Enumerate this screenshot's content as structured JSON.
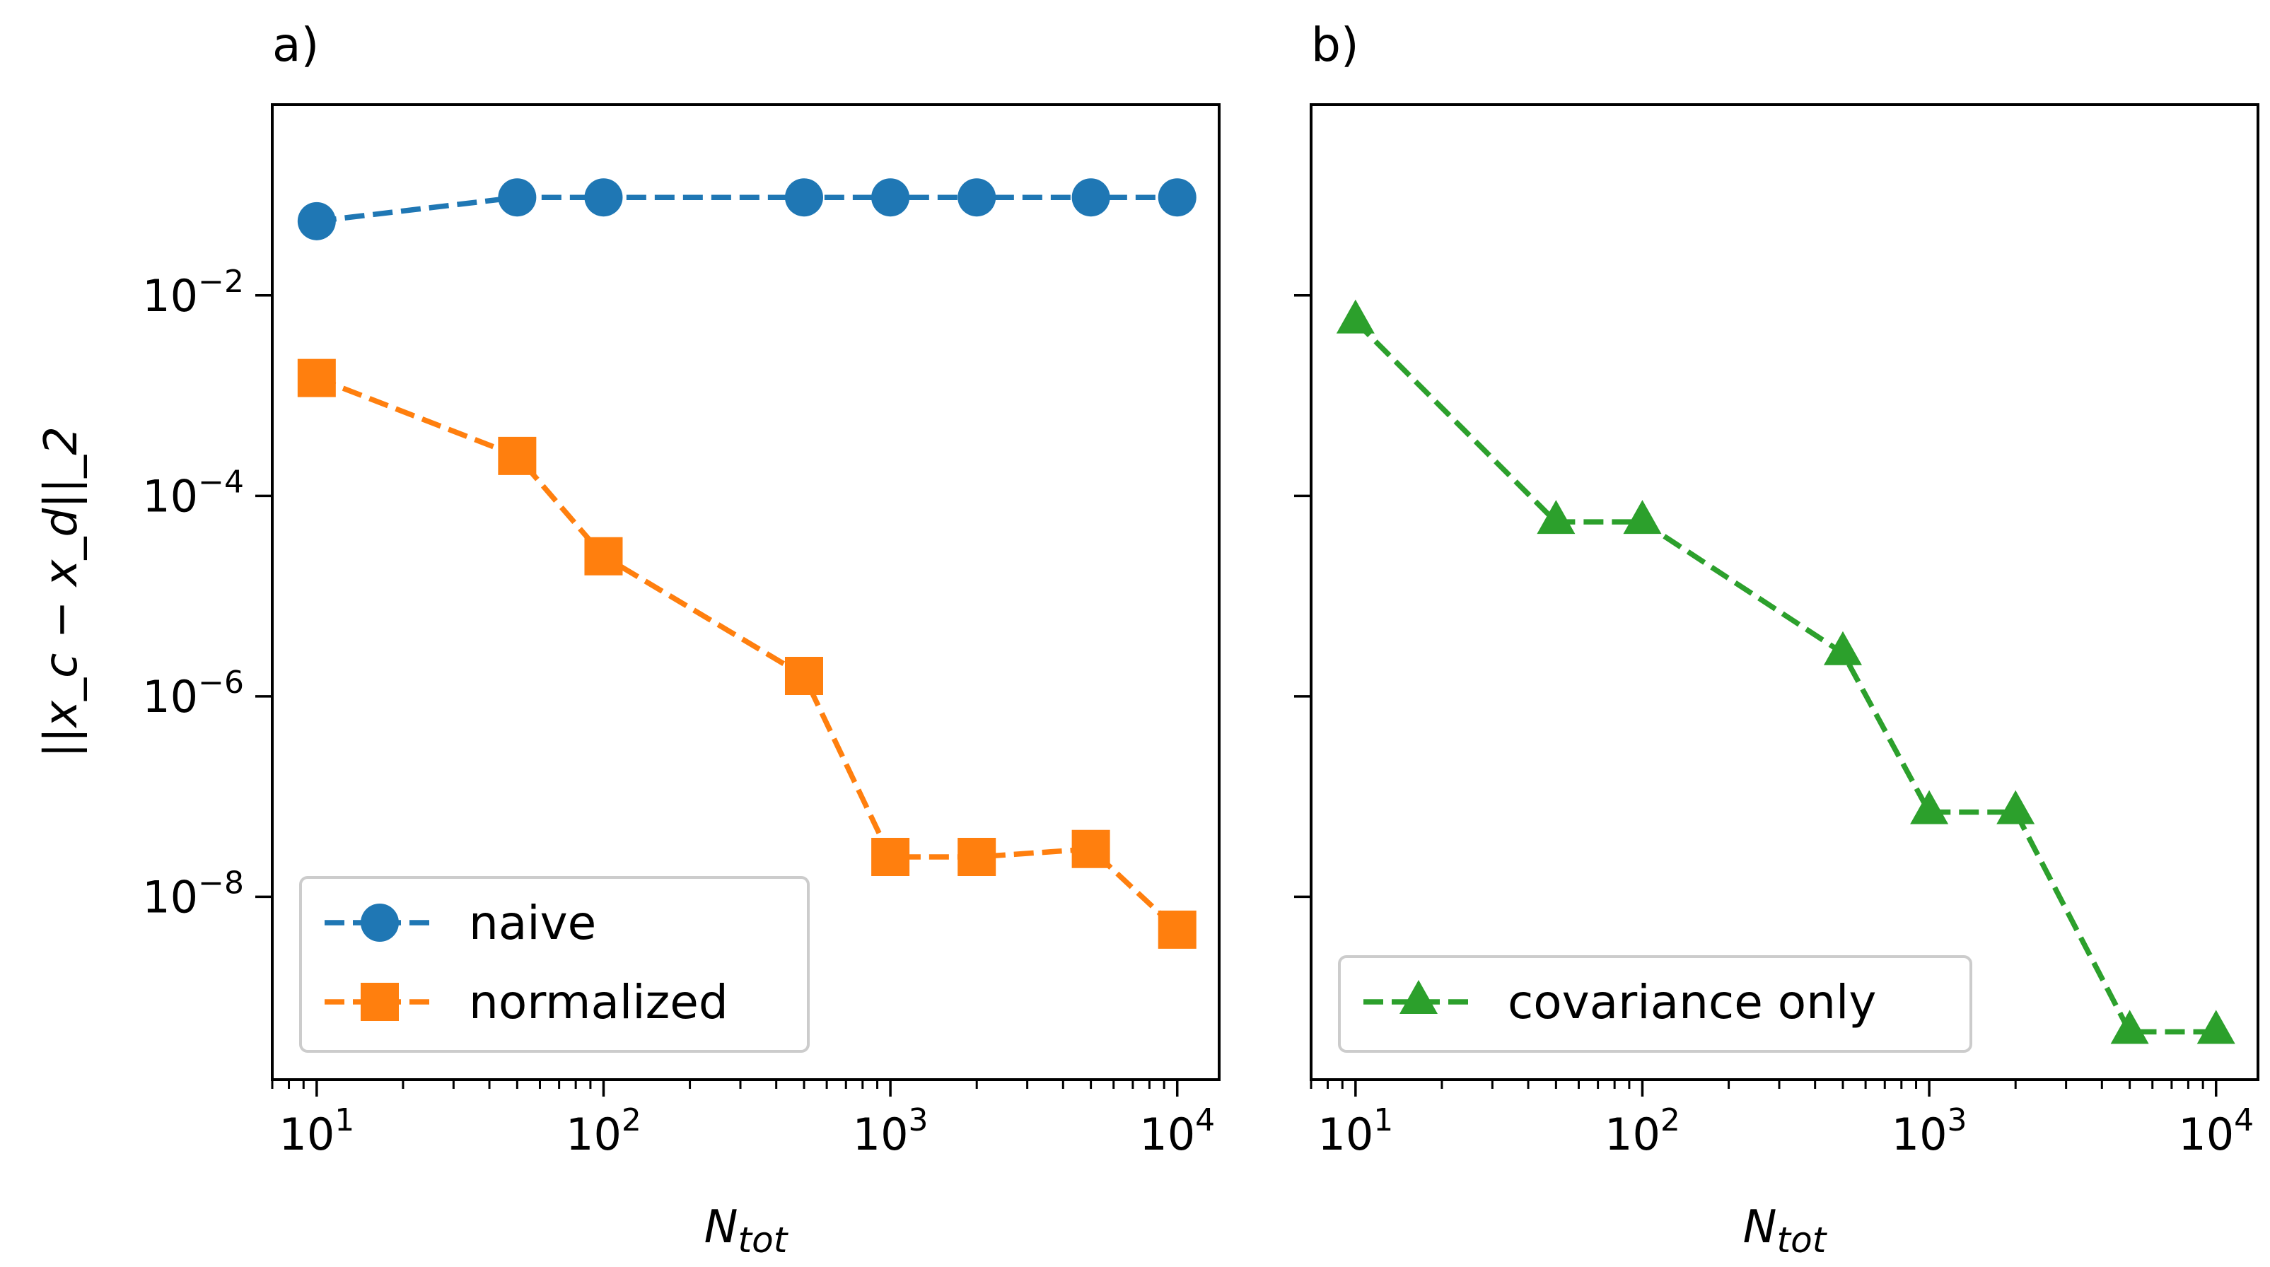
{
  "chart_data": [
    {
      "type": "line",
      "panel_label": "a)",
      "xscale": "log",
      "yscale": "log",
      "xlim": [
        7,
        14000
      ],
      "ylim": [
        1.5e-10,
        0.8
      ],
      "xlabel": "N",
      "xlabel_sub": "tot",
      "ylabel": "||x_c − x_d||_2",
      "xticks": [
        {
          "base": "10",
          "exp": "1",
          "value": 10
        },
        {
          "base": "10",
          "exp": "2",
          "value": 100
        },
        {
          "base": "10",
          "exp": "3",
          "value": 1000
        },
        {
          "base": "10",
          "exp": "4",
          "value": 10000
        }
      ],
      "yticks": [
        {
          "base": "10",
          "exp": "−2",
          "value": 0.01
        },
        {
          "base": "10",
          "exp": "−4",
          "value": 0.0001
        },
        {
          "base": "10",
          "exp": "−6",
          "value": 1e-06
        },
        {
          "base": "10",
          "exp": "−8",
          "value": 1e-08
        }
      ],
      "legend_position": "lower-left",
      "series": [
        {
          "name": "naive",
          "color": "#1f77b4",
          "marker": "circle",
          "linestyle": "dashed",
          "x": [
            10,
            50,
            100,
            500,
            1000,
            2000,
            5000,
            10000
          ],
          "y": [
            0.055,
            0.095,
            0.095,
            0.095,
            0.095,
            0.095,
            0.095,
            0.095
          ]
        },
        {
          "name": "normalized",
          "color": "#ff7f0e",
          "marker": "square",
          "linestyle": "dashed",
          "x": [
            10,
            50,
            100,
            500,
            1000,
            2000,
            5000,
            10000
          ],
          "y": [
            0.0015,
            0.00025,
            2.5e-05,
            1.6e-06,
            2.5e-08,
            2.5e-08,
            3e-08,
            4.7e-09
          ]
        }
      ]
    },
    {
      "type": "line",
      "panel_label": "b)",
      "xscale": "log",
      "yscale": "log",
      "xlim": [
        7,
        14000
      ],
      "ylim": [
        1.5e-10,
        0.8
      ],
      "xlabel": "N",
      "xlabel_sub": "tot",
      "xticks": [
        {
          "base": "10",
          "exp": "1",
          "value": 10
        },
        {
          "base": "10",
          "exp": "2",
          "value": 100
        },
        {
          "base": "10",
          "exp": "3",
          "value": 1000
        },
        {
          "base": "10",
          "exp": "4",
          "value": 10000
        }
      ],
      "yticks_unlabeled": [
        0.01,
        0.0001,
        1e-06,
        1e-08
      ],
      "legend_position": "lower-left",
      "series": [
        {
          "name": "covariance only",
          "color": "#2ca02c",
          "marker": "triangle",
          "linestyle": "dashed",
          "x": [
            10,
            50,
            100,
            500,
            1000,
            2000,
            5000,
            10000
          ],
          "y": [
            0.0055,
            5.5e-05,
            5.5e-05,
            2.7e-06,
            7e-08,
            7e-08,
            4.5e-10,
            4.5e-10
          ]
        }
      ]
    }
  ]
}
